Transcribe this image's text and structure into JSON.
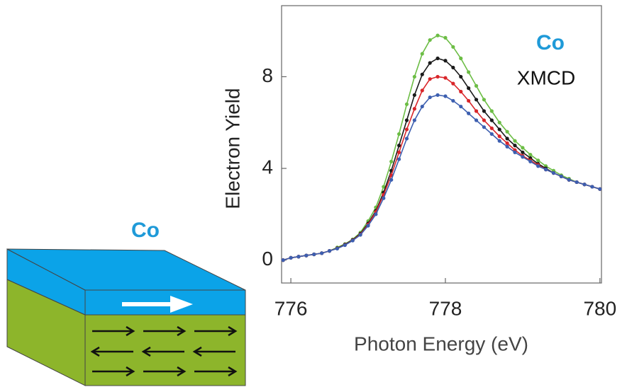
{
  "chart_data": {
    "type": "line",
    "annotations": [
      "Co",
      "XMCD"
    ],
    "xlabel": "Photon Energy (eV)",
    "ylabel": "Electron Yield",
    "x": [
      775.9,
      776.0,
      776.1,
      776.2,
      776.3,
      776.4,
      776.5,
      776.6,
      776.7,
      776.8,
      776.9,
      777.0,
      777.1,
      777.2,
      777.3,
      777.4,
      777.5,
      777.6,
      777.7,
      777.8,
      777.9,
      778.0,
      778.1,
      778.2,
      778.3,
      778.4,
      778.5,
      778.6,
      778.7,
      778.8,
      778.9,
      779.0,
      779.1,
      779.2,
      779.3,
      779.4,
      779.5,
      779.6,
      779.7,
      779.8,
      779.9,
      780.0
    ],
    "series": [
      {
        "color": "#6cbd45",
        "values": [
          0,
          0.1,
          0.15,
          0.2,
          0.25,
          0.3,
          0.4,
          0.55,
          0.7,
          0.9,
          1.2,
          1.7,
          2.3,
          3.2,
          4.3,
          5.5,
          6.8,
          8.0,
          9.0,
          9.6,
          9.8,
          9.7,
          9.3,
          8.8,
          8.2,
          7.6,
          7.0,
          6.5,
          6.0,
          5.6,
          5.2,
          4.9,
          4.6,
          4.35,
          4.1,
          3.9,
          3.7,
          3.55,
          3.4,
          3.3,
          3.2,
          3.1
        ]
      },
      {
        "color": "#1a1a1a",
        "values": [
          0,
          0.1,
          0.15,
          0.2,
          0.25,
          0.3,
          0.4,
          0.52,
          0.68,
          0.88,
          1.15,
          1.6,
          2.15,
          2.95,
          3.9,
          5.0,
          6.1,
          7.2,
          8.1,
          8.6,
          8.8,
          8.7,
          8.4,
          8.0,
          7.5,
          7.0,
          6.5,
          6.1,
          5.7,
          5.3,
          5.0,
          4.7,
          4.45,
          4.2,
          4.0,
          3.8,
          3.65,
          3.5,
          3.4,
          3.3,
          3.2,
          3.1
        ]
      },
      {
        "color": "#d9262a",
        "values": [
          0,
          0.1,
          0.15,
          0.2,
          0.25,
          0.3,
          0.4,
          0.51,
          0.66,
          0.86,
          1.12,
          1.55,
          2.1,
          2.85,
          3.7,
          4.7,
          5.7,
          6.6,
          7.4,
          7.9,
          8.0,
          7.95,
          7.7,
          7.35,
          6.95,
          6.5,
          6.1,
          5.75,
          5.4,
          5.1,
          4.8,
          4.55,
          4.35,
          4.15,
          3.95,
          3.8,
          3.65,
          3.5,
          3.4,
          3.3,
          3.2,
          3.1
        ]
      },
      {
        "color": "#3d5fb0",
        "values": [
          0,
          0.1,
          0.15,
          0.2,
          0.25,
          0.3,
          0.4,
          0.5,
          0.65,
          0.85,
          1.1,
          1.5,
          2.0,
          2.7,
          3.5,
          4.4,
          5.3,
          6.1,
          6.7,
          7.1,
          7.2,
          7.15,
          6.95,
          6.7,
          6.4,
          6.1,
          5.8,
          5.5,
          5.2,
          4.95,
          4.7,
          4.5,
          4.3,
          4.1,
          3.95,
          3.8,
          3.65,
          3.5,
          3.4,
          3.3,
          3.2,
          3.1
        ]
      }
    ],
    "xlim": [
      775.88,
      780.02
    ],
    "xticks": [
      776,
      778,
      780
    ],
    "ylim": [
      -1,
      11.1
    ],
    "yticks": [
      0,
      4,
      8
    ]
  },
  "diagram": {
    "label": "Co"
  }
}
